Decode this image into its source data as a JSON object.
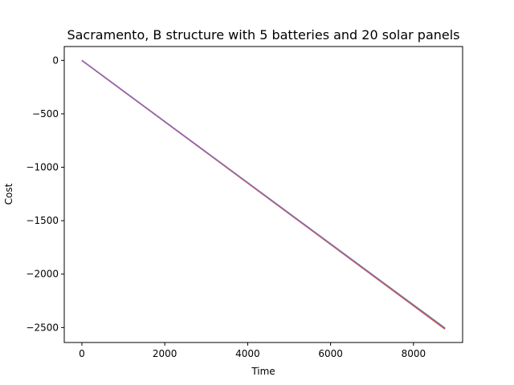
{
  "chart_data": {
    "type": "line",
    "title": "Sacramento, B structure with 5 batteries and 20 solar panels",
    "xlabel": "Time",
    "ylabel": "Cost",
    "xlim": [
      -425,
      9185
    ],
    "ylim": [
      -2640,
      130
    ],
    "xticks": [
      0,
      2000,
      4000,
      6000,
      8000
    ],
    "yticks": [
      0,
      -500,
      -1000,
      -1500,
      -2000,
      -2500
    ],
    "xtick_labels": [
      "0",
      "2000",
      "4000",
      "6000",
      "8000"
    ],
    "ytick_labels": [
      "0",
      "−500",
      "−1000",
      "−1500",
      "−2000",
      "−2500"
    ],
    "grid": false,
    "legend": "none",
    "series": [
      {
        "color": "#1f77b4",
        "x": [
          0,
          8760
        ],
        "y": [
          0,
          -2510
        ]
      },
      {
        "color": "#ff7f0e",
        "x": [
          0,
          8760
        ],
        "y": [
          0,
          -2515
        ]
      },
      {
        "color": "#2ca02c",
        "x": [
          0,
          8760
        ],
        "y": [
          0,
          -2505
        ]
      },
      {
        "color": "#d62728",
        "x": [
          0,
          8760
        ],
        "y": [
          0,
          -2512
        ]
      },
      {
        "color": "#9467bd",
        "x": [
          0,
          8760
        ],
        "y": [
          0,
          -2508
        ]
      }
    ]
  }
}
